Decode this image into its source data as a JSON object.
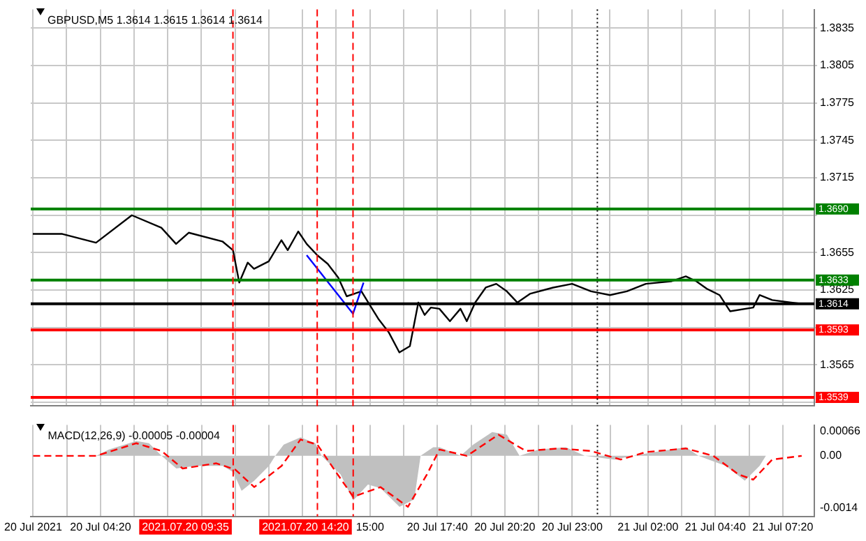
{
  "chart_data": [
    {
      "type": "line",
      "title": "GBPUSD,M5 1.3614 1.3615 1.3614 1.3614",
      "grid": true,
      "tick_labels": "y",
      "xlim": [
        "2021-07-20T01:35",
        "2021-07-21T08:35"
      ],
      "xticks": [
        "2021-07-20T01:40",
        "2021-07-20T03:00",
        "2021-07-20T04:20",
        "2021-07-20T05:40",
        "2021-07-20T07:00",
        "2021-07-20T08:20",
        "2021-07-20T09:40",
        "2021-07-20T11:00",
        "2021-07-20T12:20",
        "2021-07-20T13:40",
        "2021-07-20T15:00",
        "2021-07-20T16:20",
        "2021-07-20T17:40",
        "2021-07-20T19:00",
        "2021-07-20T20:20",
        "2021-07-20T21:40",
        "2021-07-20T23:00",
        "2021-07-21T00:30",
        "2021-07-21T02:00",
        "2021-07-21T03:20",
        "2021-07-21T04:40",
        "2021-07-21T06:00",
        "2021-07-21T07:20"
      ],
      "ylim": [
        1.3532,
        1.385
      ],
      "yticks": [
        {
          "value": 1.3535,
          "label": null
        },
        1.3565,
        {
          "value": 1.3595,
          "label": null
        },
        1.3625,
        1.3655,
        {
          "value": 1.3685,
          "label": null
        },
        1.3715,
        1.3745,
        1.3775,
        1.3805,
        1.3835
      ],
      "series": [
        {
          "color": "#000000",
          "x": [
            "2021-07-20T01:40",
            "2021-07-20T02:50",
            "2021-07-20T04:10",
            "2021-07-20T05:35",
            "2021-07-20T06:45",
            "2021-07-20T07:20",
            "2021-07-20T07:50",
            "2021-07-20T09:10",
            "2021-07-20T09:35",
            "2021-07-20T09:50",
            "2021-07-20T10:10",
            "2021-07-20T10:25",
            "2021-07-20T11:00",
            "2021-07-20T11:30",
            "2021-07-20T11:45",
            "2021-07-20T12:10",
            "2021-07-20T12:30",
            "2021-07-20T12:55",
            "2021-07-20T13:20",
            "2021-07-20T13:45",
            "2021-07-20T14:05",
            "2021-07-20T14:40",
            "2021-07-20T15:00",
            "2021-07-20T15:20",
            "2021-07-20T15:45",
            "2021-07-20T16:10",
            "2021-07-20T16:35",
            "2021-07-20T16:55",
            "2021-07-20T17:10",
            "2021-07-20T17:25",
            "2021-07-20T17:45",
            "2021-07-20T18:10",
            "2021-07-20T18:35",
            "2021-07-20T18:50",
            "2021-07-20T19:10",
            "2021-07-20T19:35",
            "2021-07-20T20:00",
            "2021-07-20T20:25",
            "2021-07-20T20:50",
            "2021-07-20T21:20",
            "2021-07-20T22:15",
            "2021-07-20T23:00",
            "2021-07-20T23:45",
            "2021-07-21T00:30",
            "2021-07-21T01:10",
            "2021-07-21T01:55",
            "2021-07-21T02:55",
            "2021-07-21T03:30",
            "2021-07-21T03:55",
            "2021-07-21T04:20",
            "2021-07-21T04:50",
            "2021-07-21T05:15",
            "2021-07-21T06:10",
            "2021-07-21T06:25",
            "2021-07-21T06:55",
            "2021-07-21T07:40",
            "2021-07-21T08:05"
          ],
          "values": [
            1.367,
            1.367,
            1.3663,
            1.3685,
            1.3675,
            1.3662,
            1.3671,
            1.3664,
            1.3657,
            1.3631,
            1.3647,
            1.3642,
            1.3648,
            1.3665,
            1.3657,
            1.3672,
            1.3662,
            1.3653,
            1.3646,
            1.3635,
            1.362,
            1.3624,
            1.3613,
            1.3602,
            1.3591,
            1.3575,
            1.358,
            1.3615,
            1.3605,
            1.3611,
            1.361,
            1.36,
            1.361,
            1.36,
            1.3615,
            1.3627,
            1.363,
            1.3624,
            1.3615,
            1.3622,
            1.3627,
            1.363,
            1.3624,
            1.3621,
            1.3624,
            1.363,
            1.3632,
            1.3636,
            1.3632,
            1.3626,
            1.3621,
            1.3608,
            1.3611,
            1.3621,
            1.3617,
            1.3615,
            1.3614
          ]
        },
        {
          "type": "line",
          "color": "#0000ff",
          "x": [
            "2021-07-20T12:30",
            "2021-07-20T14:20",
            "2021-07-20T14:45"
          ],
          "values": [
            1.3653,
            1.3606,
            1.3631
          ]
        }
      ],
      "ref_lines": [
        {
          "axis": "y",
          "value": 1.369,
          "label": "1.3690",
          "color": "#008000"
        },
        {
          "axis": "y",
          "value": 1.3633,
          "label": "1.3633",
          "color": "#008000"
        },
        {
          "axis": "y",
          "value": 1.3614,
          "label": "1.3614",
          "color": "#000000"
        },
        {
          "axis": "y",
          "value": 1.3593,
          "label": "1.3593",
          "color": "#ff0000"
        },
        {
          "axis": "y",
          "value": 1.3539,
          "label": "1.3539",
          "color": "#ff0000"
        },
        {
          "axis": "x",
          "value": "2021-07-20T09:35",
          "color": "#ff0000",
          "line_style": "dashed"
        },
        {
          "axis": "x",
          "value": "2021-07-20T12:55",
          "color": "#ff0000",
          "line_style": "dashed"
        },
        {
          "axis": "x",
          "value": "2021-07-20T14:20",
          "color": "#ff0000",
          "line_style": "dashed"
        },
        {
          "axis": "x",
          "value": "2021-07-21T00:00",
          "color": "#000000",
          "line_style": "dotted"
        }
      ]
    },
    {
      "type": "area",
      "title": "MACD(12,26,9) -0.00005 -0.00004",
      "grid": "x",
      "xlim": [
        "2021-07-20T01:35",
        "2021-07-21T08:35"
      ],
      "xticks": [
        {
          "value": "2021-07-20T01:40",
          "label": "20 Jul 2021"
        },
        {
          "value": "2021-07-20T03:00",
          "label": null
        },
        {
          "value": "2021-07-20T04:20",
          "label": "20 Jul 04:20"
        },
        {
          "value": "2021-07-20T05:40",
          "label": null
        },
        {
          "value": "2021-07-20T07:00",
          "label": null
        },
        {
          "value": "2021-07-20T08:20",
          "label": null
        },
        {
          "value": "2021-07-20T09:40",
          "label": null
        },
        {
          "value": "2021-07-20T11:00",
          "label": null
        },
        {
          "value": "2021-07-20T12:20",
          "label": null
        },
        {
          "value": "2021-07-20T13:40",
          "label": null
        },
        {
          "value": "2021-07-20T15:00",
          "label": "15:00"
        },
        {
          "value": "2021-07-20T16:20",
          "label": null
        },
        {
          "value": "2021-07-20T17:40",
          "label": "20 Jul 17:40"
        },
        {
          "value": "2021-07-20T19:00",
          "label": null
        },
        {
          "value": "2021-07-20T20:20",
          "label": "20 Jul 20:20"
        },
        {
          "value": "2021-07-20T21:40",
          "label": null
        },
        {
          "value": "2021-07-20T23:00",
          "label": "20 Jul 23:00"
        },
        {
          "value": "2021-07-21T00:30",
          "label": null
        },
        {
          "value": "2021-07-21T02:00",
          "label": "21 Jul 02:00"
        },
        {
          "value": "2021-07-21T03:20",
          "label": null
        },
        {
          "value": "2021-07-21T04:40",
          "label": "21 Jul 04:40"
        },
        {
          "value": "2021-07-21T06:00",
          "label": null
        },
        {
          "value": "2021-07-21T07:20",
          "label": "21 Jul 07:20"
        }
      ],
      "ylim": [
        -0.00163,
        0.00083
      ],
      "yticks": [
        0.00066,
        {
          "value": 0,
          "label": "0.00"
        },
        -0.0014
      ],
      "series": [
        {
          "color": "#c0c0c0",
          "x": [
            "2021-07-20T01:40",
            "2021-07-20T04:10",
            "2021-07-20T04:40",
            "2021-07-20T05:45",
            "2021-07-20T06:15",
            "2021-07-20T06:45",
            "2021-07-20T07:20",
            "2021-07-20T08:05",
            "2021-07-20T09:10",
            "2021-07-20T09:35",
            "2021-07-20T09:55",
            "2021-07-20T10:25",
            "2021-07-20T11:00",
            "2021-07-20T11:15",
            "2021-07-20T11:35",
            "2021-07-20T12:15",
            "2021-07-20T12:50",
            "2021-07-20T13:05",
            "2021-07-20T13:50",
            "2021-07-20T14:20",
            "2021-07-20T14:55",
            "2021-07-20T15:25",
            "2021-07-20T16:10",
            "2021-07-20T16:45",
            "2021-07-20T17:00",
            "2021-07-20T17:30",
            "2021-07-20T17:45",
            "2021-07-20T18:35",
            "2021-07-20T19:05",
            "2021-07-20T19:50",
            "2021-07-20T20:25",
            "2021-07-20T20:55",
            "2021-07-20T21:40",
            "2021-07-20T22:45",
            "2021-07-20T23:30",
            "2021-07-21T00:40",
            "2021-07-21T01:25",
            "2021-07-21T02:30",
            "2021-07-21T03:30",
            "2021-07-21T04:00",
            "2021-07-21T05:05",
            "2021-07-21T05:50",
            "2021-07-21T06:25",
            "2021-07-21T06:40",
            "2021-07-21T08:05"
          ],
          "values": [
            0,
            0,
            0.00017,
            0.0004,
            0.00034,
            0,
            -0.00034,
            -0.00027,
            -0.00027,
            -0.00044,
            -0.00094,
            -0.00067,
            -0.00027,
            0,
            0.0003,
            0.0005,
            0.00034,
            0,
            -0.0005,
            -0.0012,
            -0.00077,
            -0.00087,
            -0.00137,
            -0.00117,
            0,
            0.00023,
            0.00023,
            0,
            0.0003,
            0.00064,
            0.00057,
            0,
            0.00017,
            0.00023,
            0,
            -0.0001,
            0,
            0.00013,
            0.00023,
            0,
            -0.00027,
            -0.00067,
            -0.00027,
            0,
            0
          ]
        },
        {
          "type": "line",
          "color": "#ff0000",
          "line_style": "dashed",
          "x": [
            "2021-07-20T01:40",
            "2021-07-20T04:10",
            "2021-07-20T05:45",
            "2021-07-20T06:45",
            "2021-07-20T07:35",
            "2021-07-20T08:55",
            "2021-07-20T09:40",
            "2021-07-20T10:25",
            "2021-07-20T11:30",
            "2021-07-20T12:15",
            "2021-07-20T12:55",
            "2021-07-20T13:35",
            "2021-07-20T14:20",
            "2021-07-20T15:25",
            "2021-07-20T16:30",
            "2021-07-20T17:15",
            "2021-07-20T17:45",
            "2021-07-20T18:50",
            "2021-07-20T20:05",
            "2021-07-20T21:10",
            "2021-07-20T22:30",
            "2021-07-20T23:45",
            "2021-07-21T00:55",
            "2021-07-21T01:55",
            "2021-07-21T03:30",
            "2021-07-21T04:35",
            "2021-07-21T05:35",
            "2021-07-21T06:10",
            "2021-07-21T06:55",
            "2021-07-21T08:05"
          ],
          "values": [
            0,
            0,
            0.00034,
            0.00013,
            -0.00034,
            -0.0002,
            -0.00037,
            -0.00084,
            -0.00027,
            0.00044,
            0.0003,
            -0.00037,
            -0.0011,
            -0.00084,
            -0.00137,
            -0.0005,
            0.00017,
            0,
            0.00057,
            0.00013,
            0.0002,
            0.00013,
            -0.0001,
            0.0001,
            0.0002,
            0,
            -0.0005,
            -0.00064,
            -0.0001,
            0
          ]
        }
      ],
      "ref_lines": [
        {
          "axis": "x",
          "value": "2021-07-20T09:35",
          "label": "2021.07.20 09:35",
          "color": "#ff0000",
          "line_style": "dashed"
        },
        {
          "axis": "x",
          "value": "2021-07-20T12:55",
          "color": "#ff0000",
          "line_style": "dashed"
        },
        {
          "axis": "x",
          "value": "2021-07-20T14:20",
          "label": "2021.07.20 14:20",
          "color": "#ff0000",
          "line_style": "dashed"
        },
        {
          "axis": "x",
          "value": "2021-07-21T00:00",
          "color": "#000000",
          "line_style": "dotted"
        }
      ]
    }
  ]
}
